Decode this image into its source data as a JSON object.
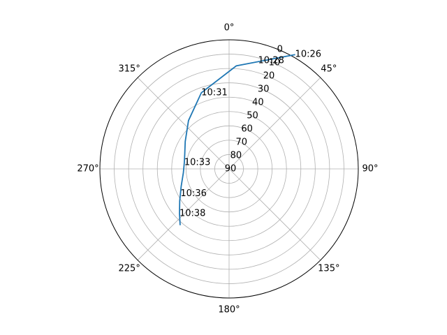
{
  "chart_data": {
    "type": "line",
    "projection": "polar",
    "theta_zero_location": "N",
    "theta_direction": "clockwise",
    "radial_axis": "altitude",
    "radial_inverted": true,
    "rlim": [
      90,
      0
    ],
    "theta_ticks": [
      0,
      45,
      90,
      135,
      180,
      225,
      270,
      315
    ],
    "theta_tick_labels": [
      "0°",
      "45°",
      "90°",
      "135°",
      "180°",
      "225°",
      "270°",
      "315°"
    ],
    "r_ticks": [
      0,
      10,
      20,
      30,
      40,
      50,
      60,
      70,
      80,
      90
    ],
    "r_tick_labels": [
      "0",
      "10",
      "20",
      "30",
      "40",
      "50",
      "60",
      "70",
      "80",
      "90"
    ],
    "grid": true,
    "series": [
      {
        "color": "#1f77b4",
        "points": [
          {
            "azimuth": 30.0,
            "altitude": -2.0
          },
          {
            "azimuth": 4.0,
            "altitude": 18.0
          },
          {
            "azimuth": -20.0,
            "altitude": 33.5
          },
          {
            "azimuth": -40.0,
            "altitude": 46.0
          },
          {
            "azimuth": -58.0,
            "altitude": 54.0
          },
          {
            "azimuth": -72.0,
            "altitude": 57.5
          },
          {
            "azimuth": -82.0,
            "altitude": 58.5
          },
          {
            "azimuth": -95.0,
            "altitude": 58.0
          },
          {
            "azimuth": -110.0,
            "altitude": 54.5
          },
          {
            "azimuth": -123.0,
            "altitude": 49.0
          },
          {
            "azimuth": -132.0,
            "altitude": 43.5
          },
          {
            "azimuth": -139.0,
            "altitude": 38.0
          }
        ]
      }
    ],
    "annotations": [
      {
        "text": "10:26",
        "azimuth": 30.0,
        "altitude": -2.0
      },
      {
        "text": "10:28",
        "azimuth": 15.0,
        "altitude": 12.0
      },
      {
        "text": "10:31",
        "azimuth": -20.0,
        "altitude": 33.5
      },
      {
        "text": "10:33",
        "azimuth": -82.0,
        "altitude": 58.5
      },
      {
        "text": "10:36",
        "azimuth": -117.0,
        "altitude": 52.0
      },
      {
        "text": "10:38",
        "azimuth": -132.0,
        "altitude": 43.5
      }
    ]
  }
}
